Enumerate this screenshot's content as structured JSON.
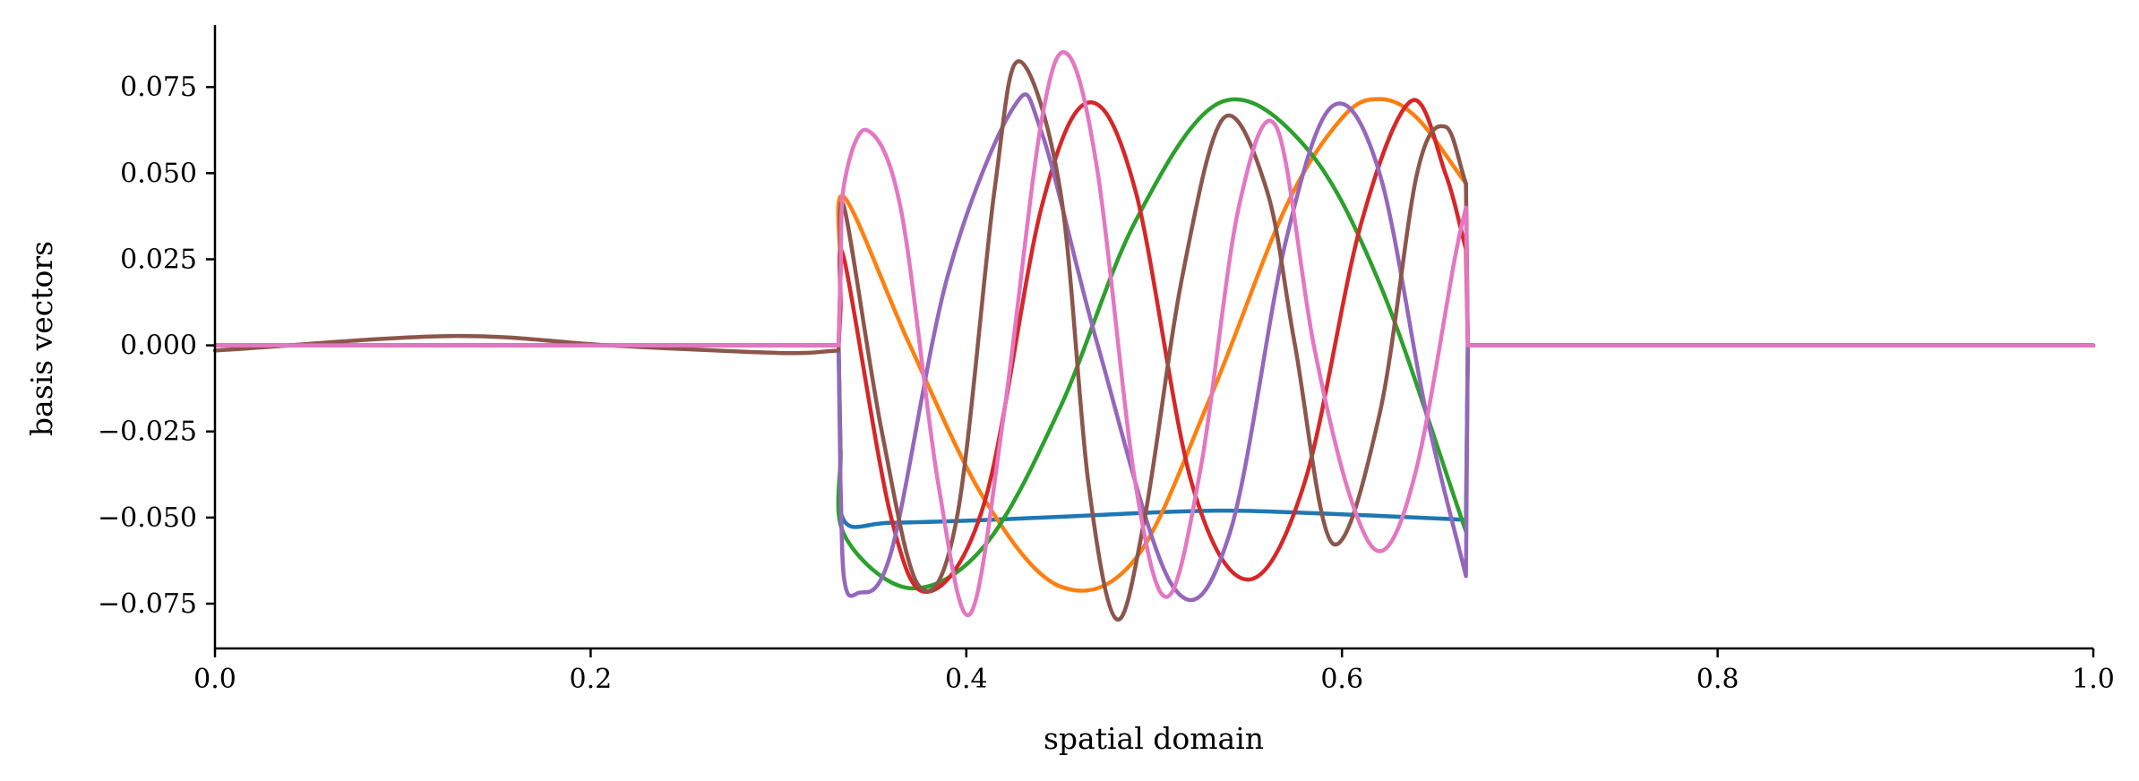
{
  "chart_data": {
    "type": "line",
    "title": "",
    "xlabel": "spatial domain",
    "ylabel": "basis vectors",
    "xlim": [
      0.0,
      1.0
    ],
    "ylim": [
      -0.088,
      0.093
    ],
    "grid": false,
    "legend": "none",
    "x_ticks": [
      0.0,
      0.2,
      0.4,
      0.6,
      0.8,
      1.0
    ],
    "x_tick_labels": [
      "0.0",
      "0.2",
      "0.4",
      "0.6",
      "0.8",
      "1.0"
    ],
    "y_ticks": [
      -0.075,
      -0.05,
      -0.025,
      0.0,
      0.025,
      0.05,
      0.075
    ],
    "y_tick_labels": [
      "−0.075",
      "−0.050",
      "−0.025",
      "0.000",
      "0.025",
      "0.050",
      "0.075"
    ],
    "series": [
      {
        "color": "#1f77b4",
        "x": [
          0.0,
          0.332,
          0.333,
          0.335,
          0.36,
          0.42,
          0.5,
          0.53,
          0.56,
          0.62,
          0.66,
          0.666,
          0.667,
          1.0
        ],
        "y": [
          0.0,
          0.0,
          -0.03,
          -0.051,
          -0.0515,
          -0.0505,
          -0.0485,
          -0.048,
          -0.0482,
          -0.0495,
          -0.0505,
          -0.051,
          0.0,
          0.0
        ]
      },
      {
        "color": "#ff7f0e",
        "x": [
          0.0,
          0.332,
          0.333,
          0.335,
          0.37,
          0.41,
          0.45,
          0.49,
          0.53,
          0.57,
          0.6,
          0.62,
          0.64,
          0.666,
          0.667,
          1.0
        ],
        "y": [
          0.0,
          0.0,
          0.02,
          0.043,
          0.0,
          -0.045,
          -0.07,
          -0.062,
          -0.015,
          0.04,
          0.066,
          0.0715,
          0.066,
          0.047,
          0.0,
          0.0
        ]
      },
      {
        "color": "#2ca02c",
        "x": [
          0.0,
          0.332,
          0.333,
          0.335,
          0.37,
          0.41,
          0.45,
          0.49,
          0.535,
          0.58,
          0.62,
          0.666,
          0.667,
          1.0
        ],
        "y": [
          0.0,
          0.0,
          -0.03,
          -0.055,
          -0.0705,
          -0.058,
          -0.018,
          0.036,
          0.0705,
          0.058,
          0.018,
          -0.054,
          0.0,
          0.0
        ]
      },
      {
        "color": "#d62728",
        "x": [
          0.0,
          0.332,
          0.333,
          0.335,
          0.36,
          0.38,
          0.41,
          0.44,
          0.465,
          0.49,
          0.52,
          0.55,
          0.58,
          0.61,
          0.637,
          0.655,
          0.666,
          0.667,
          1.0
        ],
        "y": [
          0.0,
          0.0,
          0.01,
          0.025,
          -0.05,
          -0.0715,
          -0.045,
          0.04,
          0.0705,
          0.045,
          -0.04,
          -0.068,
          -0.04,
          0.035,
          0.071,
          0.05,
          0.028,
          0.0,
          0.0
        ]
      },
      {
        "color": "#9467bd",
        "x": [
          0.0,
          0.332,
          0.333,
          0.335,
          0.342,
          0.36,
          0.39,
          0.425,
          0.44,
          0.47,
          0.51,
          0.54,
          0.57,
          0.595,
          0.62,
          0.645,
          0.666,
          0.667,
          1.0
        ],
        "y": [
          0.0,
          0.0,
          -0.04,
          -0.068,
          -0.072,
          -0.06,
          0.02,
          0.069,
          0.062,
          0.0,
          -0.07,
          -0.055,
          0.03,
          0.0695,
          0.05,
          -0.02,
          -0.067,
          0.0,
          0.0
        ]
      },
      {
        "color": "#8c564b",
        "x": [
          0.0,
          0.125,
          0.21,
          0.3,
          0.332,
          0.333,
          0.335,
          0.355,
          0.375,
          0.395,
          0.415,
          0.428,
          0.45,
          0.465,
          0.48,
          0.495,
          0.515,
          0.537,
          0.56,
          0.575,
          0.595,
          0.62,
          0.64,
          0.655,
          0.666,
          0.667,
          1.0
        ],
        "y": [
          -0.0015,
          0.0027,
          0.0,
          -0.0022,
          -0.0015,
          0.02,
          0.04,
          -0.025,
          -0.07,
          -0.05,
          0.045,
          0.0825,
          0.045,
          -0.04,
          -0.0795,
          -0.05,
          0.02,
          0.066,
          0.045,
          0.0,
          -0.0575,
          -0.02,
          0.05,
          0.0635,
          0.047,
          0.0,
          0.0
        ]
      },
      {
        "color": "#e377c2",
        "x": [
          0.0,
          0.332,
          0.333,
          0.335,
          0.347,
          0.365,
          0.385,
          0.402,
          0.42,
          0.44,
          0.454,
          0.47,
          0.49,
          0.507,
          0.525,
          0.545,
          0.565,
          0.585,
          0.605,
          0.622,
          0.64,
          0.66,
          0.666,
          0.667,
          1.0
        ],
        "y": [
          0.0,
          0.0,
          0.02,
          0.047,
          0.0625,
          0.04,
          -0.04,
          -0.078,
          -0.02,
          0.065,
          0.0845,
          0.05,
          -0.04,
          -0.073,
          -0.035,
          0.04,
          0.0635,
          0.0,
          -0.045,
          -0.0595,
          -0.035,
          0.025,
          0.04,
          0.0,
          0.0
        ]
      }
    ]
  }
}
